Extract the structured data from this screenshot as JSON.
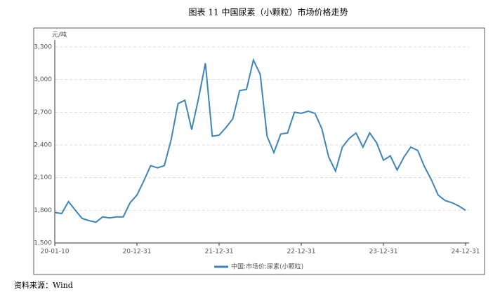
{
  "chart_data": {
    "type": "line",
    "title": "图表 11    中国尿素（小颗粒）市场价格走势",
    "y_label": "元/吨",
    "source": "资料来源：Wind",
    "categories": [
      "20-01-10",
      null,
      null,
      null,
      null,
      null,
      null,
      null,
      null,
      null,
      null,
      null,
      "20-12-31",
      null,
      null,
      null,
      null,
      null,
      null,
      null,
      null,
      null,
      null,
      null,
      "21-12-31",
      null,
      null,
      null,
      null,
      null,
      null,
      null,
      null,
      null,
      null,
      null,
      "22-12-31",
      null,
      null,
      null,
      null,
      null,
      null,
      null,
      null,
      null,
      null,
      null,
      "23-12-31",
      null,
      null,
      null,
      null,
      null,
      null,
      null,
      null,
      null,
      null,
      null,
      "24-12-31"
    ],
    "series": [
      {
        "name": "中国:市场价:尿素(小颗粒)",
        "color": "#3d85b8",
        "values": [
          1780,
          1770,
          1880,
          1800,
          1725,
          1705,
          1690,
          1740,
          1730,
          1740,
          1740,
          1870,
          1940,
          2070,
          2210,
          2190,
          2210,
          2450,
          2780,
          2810,
          2540,
          2830,
          3150,
          2480,
          2490,
          2560,
          2640,
          2900,
          2910,
          3180,
          3050,
          2480,
          2330,
          2500,
          2510,
          2700,
          2690,
          2710,
          2690,
          2550,
          2290,
          2160,
          2380,
          2460,
          2510,
          2380,
          2510,
          2420,
          2260,
          2300,
          2170,
          2290,
          2380,
          2350,
          2200,
          2080,
          1940,
          1890,
          1870,
          1840,
          1800
        ]
      }
    ],
    "ylim": [
      1500,
      3300
    ],
    "yticks": [
      {
        "value": 1500,
        "label": "1,500"
      },
      {
        "value": 1800,
        "label": "1,800"
      },
      {
        "value": 2100,
        "label": "2,100"
      },
      {
        "value": 2400,
        "label": "2,400"
      },
      {
        "value": 2700,
        "label": "2,700"
      },
      {
        "value": 3000,
        "label": "3,000"
      },
      {
        "value": 3300,
        "label": "3,300"
      }
    ],
    "grid": true
  }
}
